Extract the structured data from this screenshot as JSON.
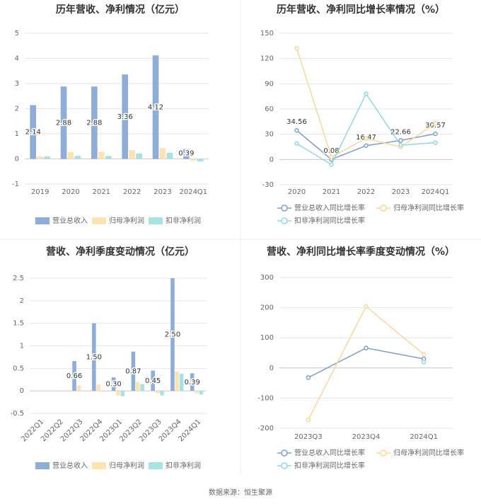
{
  "chart_data": [
    {
      "type": "bar",
      "title": "历年营收、净利情况（亿元）",
      "categories": [
        "2019",
        "2020",
        "2021",
        "2022",
        "2023",
        "2024Q1"
      ],
      "series": [
        {
          "name": "营业总收入",
          "color": "#8fadd9",
          "values": [
            2.14,
            2.88,
            2.88,
            3.36,
            4.12,
            0.39
          ],
          "value_labels": [
            "2.14",
            "2.88",
            "2.88",
            "3.36",
            "4.12",
            "0.39"
          ]
        },
        {
          "name": "归母净利润",
          "color": "#fce3b0",
          "values": [
            0.1,
            0.27,
            0.28,
            0.35,
            0.42,
            -0.07
          ]
        },
        {
          "name": "扣非净利润",
          "color": "#a6e3e3",
          "values": [
            0.1,
            0.12,
            0.12,
            0.22,
            0.25,
            -0.1
          ]
        }
      ],
      "ylim": [
        -1,
        5
      ],
      "yticks": [
        -1,
        0,
        1,
        2,
        3,
        4,
        5
      ],
      "grid": true
    },
    {
      "type": "line",
      "title": "历年营收、净利同比增长率情况（%）",
      "categories": [
        "2020",
        "2021",
        "2022",
        "2023",
        "2024Q1"
      ],
      "series": [
        {
          "name": "营业总收入同比增长率",
          "color": "#7f9fcf",
          "values": [
            34.56,
            0.08,
            16.47,
            22.66,
            30.57
          ],
          "value_labels": [
            "34.56",
            "0.08",
            "16.47",
            "22.66",
            "30.57"
          ]
        },
        {
          "name": "归母净利润同比增长率",
          "color": "#fbd79a",
          "values": [
            132,
            3,
            25,
            15,
            43
          ]
        },
        {
          "name": "扣非净利润同比增长率",
          "color": "#8fd9df",
          "values": [
            19,
            -6,
            78,
            17,
            20
          ]
        }
      ],
      "ylim": [
        -30,
        150
      ],
      "yticks": [
        -30,
        0,
        30,
        60,
        90,
        120,
        150
      ],
      "grid": true
    },
    {
      "type": "bar",
      "title": "营收、净利季度变动情况（亿元）",
      "categories": [
        "2022Q1",
        "2022Q2",
        "2022Q3",
        "2022Q4",
        "2023Q1",
        "2023Q2",
        "2023Q3",
        "2023Q4",
        "2024Q1"
      ],
      "series": [
        {
          "name": "营业总收入",
          "color": "#8fadd9",
          "values": [
            null,
            null,
            0.66,
            1.5,
            0.3,
            0.87,
            0.45,
            2.5,
            0.39
          ],
          "value_labels": [
            null,
            null,
            "0.66",
            "1.50",
            "0.30",
            "0.87",
            "0.45",
            "2.50",
            "0.39"
          ]
        },
        {
          "name": "归母净利润",
          "color": "#fce3b0",
          "values": [
            null,
            null,
            0.12,
            0.14,
            -0.1,
            0.2,
            -0.05,
            0.43,
            -0.05
          ]
        },
        {
          "name": "扣非净利润",
          "color": "#a6e3e3",
          "values": [
            null,
            null,
            null,
            null,
            -0.12,
            0.15,
            -0.1,
            0.38,
            -0.08
          ]
        }
      ],
      "ylim": [
        -0.5,
        2.5
      ],
      "yticks": [
        -0.5,
        0,
        0.5,
        1,
        1.5,
        2,
        2.5
      ],
      "grid": true
    },
    {
      "type": "line",
      "title": "营收、净利同比增长率季度变动情况（%）",
      "categories": [
        "2023Q3",
        "2023Q4",
        "2024Q1"
      ],
      "series": [
        {
          "name": "营业总收入同比增长率",
          "color": "#7f9fcf",
          "values": [
            -32,
            66,
            30
          ]
        },
        {
          "name": "归母净利润同比增长率",
          "color": "#fbd79a",
          "values": [
            -172,
            204,
            45
          ]
        },
        {
          "name": "扣非净利润同比增长率",
          "color": "#8fd9df",
          "values": [
            null,
            null,
            20
          ]
        }
      ],
      "ylim": [
        -200,
        300
      ],
      "yticks": [
        -200,
        -100,
        0,
        100,
        200,
        300
      ],
      "grid": true
    }
  ],
  "source": "数据来源：恒生聚源"
}
